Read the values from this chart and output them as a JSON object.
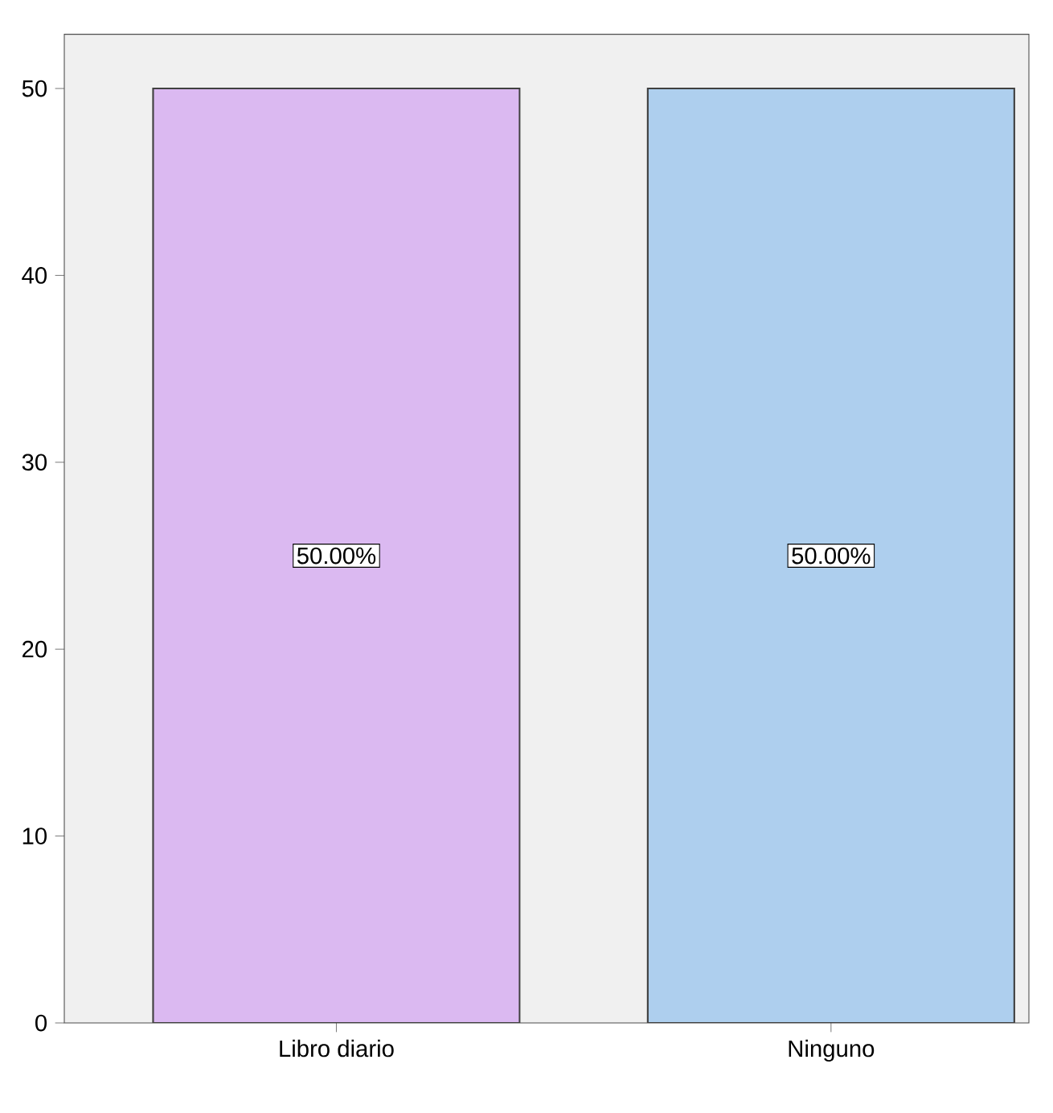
{
  "chart_data": {
    "type": "bar",
    "categories": [
      "Libro diario",
      "Ninguno"
    ],
    "values": [
      50,
      50
    ],
    "colors": [
      "#dbb9f1",
      "#aecfee"
    ],
    "value_labels": [
      "50.00%",
      "50.00%"
    ],
    "ylim": [
      0,
      52.9
    ],
    "yticks": [
      0,
      10,
      20,
      30,
      40,
      50
    ],
    "grid": false
  }
}
